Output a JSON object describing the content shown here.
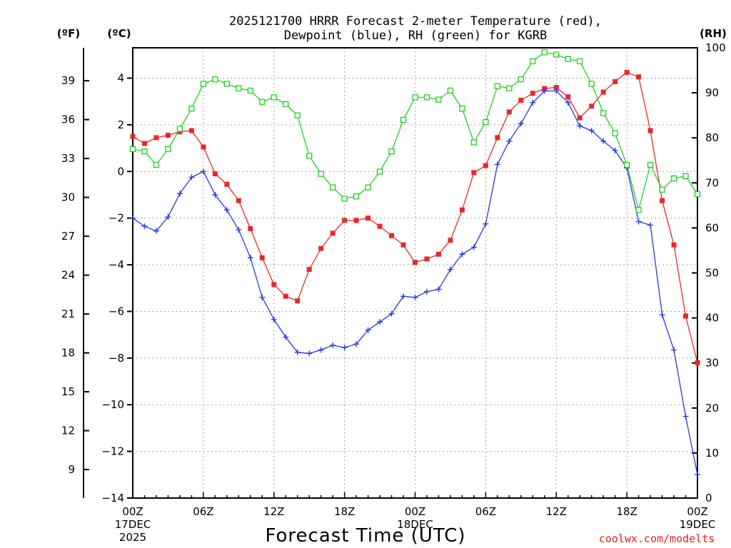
{
  "chart_data": {
    "type": "line",
    "title_line1": "2025121700 HRRR Forecast 2-meter Temperature (red),",
    "title_line2": "Dewpoint (blue), RH (green) for KGRB",
    "xlabel": "Forecast Time (UTC)",
    "credit": "coolwx.com/modelts",
    "units": {
      "fahrenheit": "(ºF)",
      "celsius": "(ºC)",
      "rh": "(RH)"
    },
    "x_range": [
      0,
      48
    ],
    "celsius_range": [
      -14,
      5.3
    ],
    "rh_range": [
      0,
      100
    ],
    "x_ticks": [
      {
        "x": 0,
        "lines": [
          "00Z",
          "17DEC",
          "2025"
        ]
      },
      {
        "x": 6,
        "lines": [
          "06Z"
        ]
      },
      {
        "x": 12,
        "lines": [
          "12Z"
        ]
      },
      {
        "x": 18,
        "lines": [
          "18Z"
        ]
      },
      {
        "x": 24,
        "lines": [
          "00Z",
          "18DEC"
        ]
      },
      {
        "x": 30,
        "lines": [
          "06Z"
        ]
      },
      {
        "x": 36,
        "lines": [
          "12Z"
        ]
      },
      {
        "x": 42,
        "lines": [
          "18Z"
        ]
      },
      {
        "x": 48,
        "lines": [
          "00Z",
          "19DEC"
        ]
      }
    ],
    "celsius_ticks": [
      -14,
      -12,
      -10,
      -8,
      -6,
      -4,
      -2,
      0,
      2,
      4
    ],
    "celsius_tick_labels": [
      "−14",
      "−12",
      "−10",
      "−8",
      "−6",
      "−4",
      "−2",
      "0",
      "2",
      "4"
    ],
    "fahrenheit_ticks": [
      9,
      12,
      15,
      18,
      21,
      24,
      27,
      30,
      33,
      36,
      39
    ],
    "rh_ticks": [
      0,
      10,
      20,
      30,
      40,
      50,
      60,
      70,
      80,
      90,
      100
    ],
    "colors": {
      "temperature": "#e82828",
      "dewpoint": "#2838e0",
      "rh": "#20d020",
      "grid": "#888888"
    },
    "series": [
      {
        "name": "Temperature",
        "unit": "C",
        "marker": "filled-square",
        "values": [
          1.5,
          1.2,
          1.45,
          1.55,
          1.7,
          1.75,
          1.05,
          -0.1,
          -0.55,
          -1.25,
          -2.45,
          -3.7,
          -4.85,
          -5.35,
          -5.55,
          -4.2,
          -3.3,
          -2.65,
          -2.1,
          -2.1,
          -2.0,
          -2.35,
          -2.75,
          -3.15,
          -3.9,
          -3.75,
          -3.55,
          -2.95,
          -1.65,
          -0.05,
          0.25,
          1.45,
          2.55,
          3.05,
          3.35,
          3.55,
          3.6,
          3.2,
          2.3,
          2.8,
          3.4,
          3.85,
          4.25,
          4.05,
          1.75,
          -1.25,
          -3.15,
          -6.2,
          -8.2
        ]
      },
      {
        "name": "Dewpoint",
        "unit": "C",
        "marker": "plus",
        "values": [
          -2.0,
          -2.35,
          -2.55,
          -1.95,
          -0.95,
          -0.25,
          0.0,
          -1.0,
          -1.65,
          -2.5,
          -3.7,
          -5.4,
          -6.35,
          -7.1,
          -7.75,
          -7.8,
          -7.65,
          -7.45,
          -7.55,
          -7.4,
          -6.8,
          -6.45,
          -6.1,
          -5.35,
          -5.4,
          -5.15,
          -5.05,
          -4.2,
          -3.55,
          -3.25,
          -2.25,
          0.3,
          1.3,
          2.05,
          2.95,
          3.45,
          3.45,
          2.95,
          1.95,
          1.75,
          1.3,
          0.9,
          0.15,
          -2.15,
          -2.3,
          -6.15,
          -7.65,
          -10.5,
          -13.0
        ]
      },
      {
        "name": "RH",
        "unit": "percent",
        "marker": "open-square",
        "values": [
          77.5,
          77.0,
          74.0,
          77.5,
          82.0,
          86.5,
          92.0,
          93.0,
          92.0,
          91.0,
          90.5,
          88.0,
          89.0,
          87.5,
          85.0,
          76.0,
          72.0,
          69.0,
          66.5,
          67.0,
          69.0,
          72.5,
          77.0,
          84.0,
          89.0,
          89.0,
          88.5,
          90.5,
          86.5,
          79.0,
          83.5,
          91.5,
          91.0,
          93.0,
          97.0,
          99.0,
          98.5,
          97.5,
          97.0,
          92.0,
          85.5,
          81.0,
          74.0,
          64.0,
          74.0,
          68.5,
          71.0,
          71.5,
          67.5
        ]
      }
    ]
  }
}
